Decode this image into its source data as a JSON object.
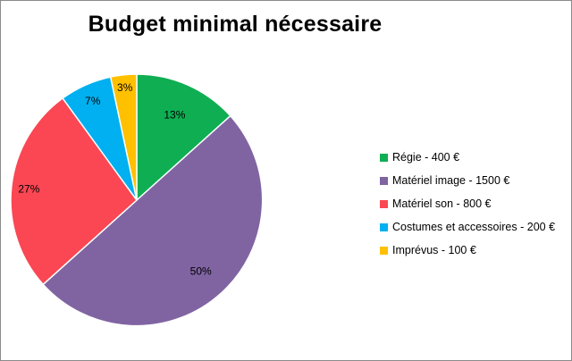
{
  "chart_data": {
    "type": "pie",
    "title": "Budget minimal nécessaire",
    "categories": [
      "Régie - 400 €",
      "Matériel image - 1500 €",
      "Matériel son - 800 €",
      "Costumes et accessoires - 200 €",
      "Imprévus - 100 €"
    ],
    "values": [
      400,
      1500,
      800,
      200,
      100
    ],
    "percent_labels": [
      "13%",
      "50%",
      "27%",
      "7%",
      "3%"
    ],
    "colors": [
      "#0fae52",
      "#8064a2",
      "#fa4753",
      "#00b0f0",
      "#ffc000"
    ],
    "legend_position": "right"
  }
}
